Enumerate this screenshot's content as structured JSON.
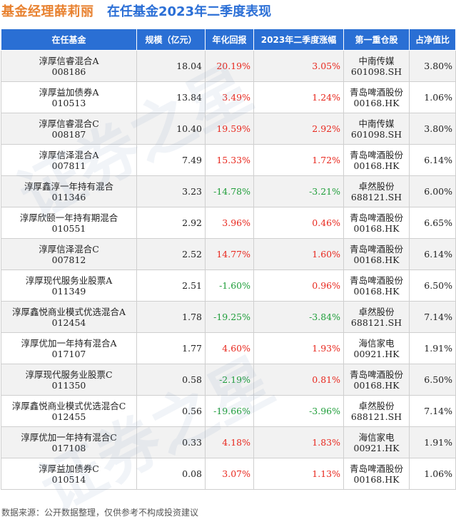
{
  "header": {
    "manager": "基金经理薛莉丽",
    "subtitle": "在任基金2023年二季度表现"
  },
  "table": {
    "columns": [
      "在任基金",
      "规模（亿元）",
      "年化回报",
      "2023年二季度涨幅",
      "第一重仓股",
      "占净值比"
    ],
    "rows": [
      {
        "name": "淳厚信睿混合A",
        "code": "008186",
        "size": "18.04",
        "annual": "20.19%",
        "q2": "3.05%",
        "stock": "中南传媒",
        "stock_code": "601098.SH",
        "ratio": "3.80%"
      },
      {
        "name": "淳厚益加债券A",
        "code": "010513",
        "size": "13.84",
        "annual": "3.49%",
        "q2": "1.24%",
        "stock": "青岛啤酒股份",
        "stock_code": "00168.HK",
        "ratio": "1.06%"
      },
      {
        "name": "淳厚信睿混合C",
        "code": "008187",
        "size": "10.40",
        "annual": "19.59%",
        "q2": "2.92%",
        "stock": "中南传媒",
        "stock_code": "601098.SH",
        "ratio": "3.80%"
      },
      {
        "name": "淳厚信泽混合A",
        "code": "007811",
        "size": "7.49",
        "annual": "15.33%",
        "q2": "1.72%",
        "stock": "青岛啤酒股份",
        "stock_code": "00168.HK",
        "ratio": "6.14%"
      },
      {
        "name": "淳厚鑫淳一年持有混合",
        "code": "011346",
        "size": "3.23",
        "annual": "-14.78%",
        "q2": "-3.21%",
        "stock": "卓然股份",
        "stock_code": "688121.SH",
        "ratio": "6.00%"
      },
      {
        "name": "淳厚欣颐一年持有期混合",
        "code": "010551",
        "size": "2.92",
        "annual": "3.96%",
        "q2": "0.46%",
        "stock": "青岛啤酒股份",
        "stock_code": "00168.HK",
        "ratio": "6.65%"
      },
      {
        "name": "淳厚信泽混合C",
        "code": "007812",
        "size": "2.52",
        "annual": "14.77%",
        "q2": "1.60%",
        "stock": "青岛啤酒股份",
        "stock_code": "00168.HK",
        "ratio": "6.14%"
      },
      {
        "name": "淳厚现代服务业股票A",
        "code": "011349",
        "size": "2.51",
        "annual": "-1.60%",
        "q2": "0.96%",
        "stock": "青岛啤酒股份",
        "stock_code": "00168.HK",
        "ratio": "6.50%"
      },
      {
        "name": "淳厚鑫悦商业模式优选混合A",
        "code": "012454",
        "size": "1.78",
        "annual": "-19.25%",
        "q2": "-3.84%",
        "stock": "卓然股份",
        "stock_code": "688121.SH",
        "ratio": "7.14%"
      },
      {
        "name": "淳厚优加一年持有混合A",
        "code": "017107",
        "size": "1.77",
        "annual": "4.60%",
        "q2": "1.93%",
        "stock": "海信家电",
        "stock_code": "00921.HK",
        "ratio": "1.91%"
      },
      {
        "name": "淳厚现代服务业股票C",
        "code": "011350",
        "size": "0.58",
        "annual": "-2.19%",
        "q2": "0.81%",
        "stock": "青岛啤酒股份",
        "stock_code": "00168.HK",
        "ratio": "6.50%"
      },
      {
        "name": "淳厚鑫悦商业模式优选混合C",
        "code": "012455",
        "size": "0.56",
        "annual": "-19.66%",
        "q2": "-3.96%",
        "stock": "卓然股份",
        "stock_code": "688121.SH",
        "ratio": "7.14%"
      },
      {
        "name": "淳厚优加一年持有混合C",
        "code": "017108",
        "size": "0.33",
        "annual": "4.18%",
        "q2": "1.83%",
        "stock": "海信家电",
        "stock_code": "00921.HK",
        "ratio": "1.91%"
      },
      {
        "name": "淳厚益加债券C",
        "code": "010514",
        "size": "0.08",
        "annual": "3.07%",
        "q2": "1.13%",
        "stock": "青岛啤酒股份",
        "stock_code": "00168.HK",
        "ratio": "1.06%"
      }
    ]
  },
  "footer": {
    "source": "数据来源：公开数据整理，仅供参考不构成投资建议"
  },
  "watermark": "证券之星",
  "colors": {
    "manager_title": "#e8812f",
    "subtitle": "#2b6fd6",
    "header_bg": "#2a6fd4",
    "positive": "#e8281e",
    "negative": "#1f9e3a"
  }
}
